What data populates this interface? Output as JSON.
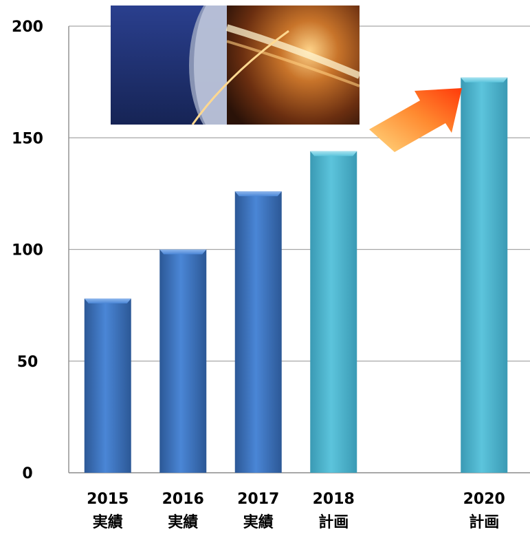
{
  "chart_data": {
    "type": "bar",
    "categories": [
      {
        "year": "2015",
        "status": "実績"
      },
      {
        "year": "2016",
        "status": "実績"
      },
      {
        "year": "2017",
        "status": "実績"
      },
      {
        "year": "2018",
        "status": "計画"
      },
      {
        "year": "",
        "status": ""
      },
      {
        "year": "2020",
        "status": "計画"
      }
    ],
    "values": [
      78,
      100,
      126,
      144,
      null,
      177
    ],
    "ylim": [
      0,
      200
    ],
    "yticks": [
      0,
      50,
      100,
      150,
      200
    ],
    "grid": true,
    "colors": {
      "actual": "#3c74c4",
      "actual_dark": "#2f5d9e",
      "plan": "#4db5cf",
      "plan_dark": "#3a9ab4",
      "grid": "#a6a6a6",
      "arrow_start": "#ffd070",
      "arrow_end": "#ff4a10"
    },
    "decorations": {
      "photo": "copper-wire-coil-photo",
      "arrow": "growth-arrow"
    }
  }
}
